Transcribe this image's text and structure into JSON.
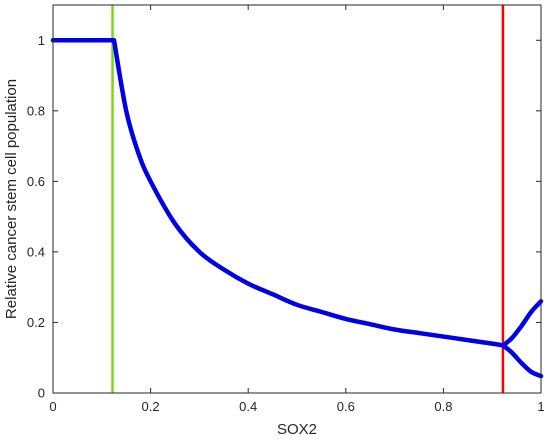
{
  "chart_data": {
    "type": "line",
    "xlabel": "SOX2",
    "ylabel": "Relative cancer stem cell population",
    "xlim": [
      0,
      1
    ],
    "ylim": [
      0,
      1.1
    ],
    "xticks": [
      0,
      0.2,
      0.4,
      0.6,
      0.8,
      1
    ],
    "yticks": [
      0,
      0.2,
      0.4,
      0.6,
      0.8,
      1
    ],
    "xtick_labels": [
      "0",
      "0.2",
      "0.4",
      "0.6",
      "0.8",
      "1"
    ],
    "ytick_labels": [
      "0",
      "0.2",
      "0.4",
      "0.6",
      "0.8",
      "1"
    ],
    "grid": false,
    "series": [
      {
        "color": "#0000e6",
        "x": [
          0,
          0.125,
          0.15,
          0.175,
          0.2,
          0.25,
          0.3,
          0.35,
          0.4,
          0.45,
          0.5,
          0.55,
          0.6,
          0.65,
          0.7,
          0.75,
          0.8,
          0.85,
          0.9,
          0.922
        ],
        "y": [
          1,
          1,
          0.8,
          0.68,
          0.6,
          0.48,
          0.4,
          0.35,
          0.31,
          0.28,
          0.25,
          0.23,
          0.21,
          0.195,
          0.18,
          0.17,
          0.16,
          0.15,
          0.14,
          0.135
        ]
      },
      {
        "color": "#0000e6",
        "x": [
          0.922,
          0.94,
          0.96,
          0.98,
          1.0
        ],
        "y": [
          0.135,
          0.155,
          0.19,
          0.23,
          0.26
        ]
      },
      {
        "color": "#0000e6",
        "x": [
          0.922,
          0.94,
          0.96,
          0.98,
          1.0
        ],
        "y": [
          0.135,
          0.115,
          0.085,
          0.06,
          0.048
        ]
      }
    ],
    "vertical_lines": [
      {
        "x": 0.122,
        "color": "#7ed321"
      },
      {
        "x": 0.922,
        "color": "#ff0000"
      }
    ]
  }
}
